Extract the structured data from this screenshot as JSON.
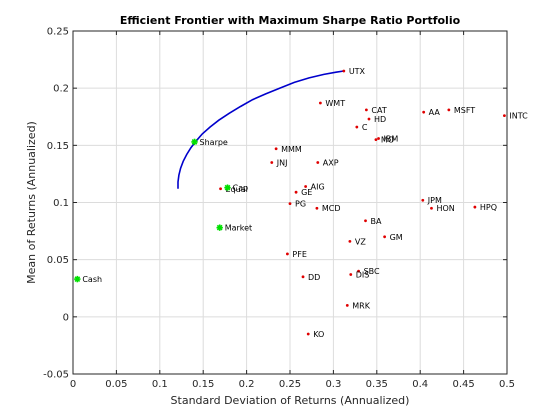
{
  "chart_data": {
    "type": "scatter",
    "title": "Efficient Frontier with Maximum Sharpe Ratio Portfolio",
    "xlabel": "Standard Deviation of Returns (Annualized)",
    "ylabel": "Mean of Returns (Annualized)",
    "xlim": [
      0,
      0.5
    ],
    "ylim": [
      -0.05,
      0.25
    ],
    "xticks": [
      0,
      0.05,
      0.1,
      0.15,
      0.2,
      0.25,
      0.3,
      0.35,
      0.4,
      0.45,
      0.5
    ],
    "xtick_labels": [
      "0",
      "0.05",
      "0.1",
      "0.15",
      "0.2",
      "0.25",
      "0.3",
      "0.35",
      "0.4",
      "0.45",
      "0.5"
    ],
    "yticks": [
      -0.05,
      0,
      0.05,
      0.1,
      0.15,
      0.2,
      0.25
    ],
    "ytick_labels": [
      "-0.05",
      "0",
      "0.05",
      "0.1",
      "0.15",
      "0.2",
      "0.25"
    ],
    "grid": true,
    "frontier": {
      "color": "#0000cc",
      "x": [
        0.121,
        0.121,
        0.122,
        0.124,
        0.127,
        0.131,
        0.136,
        0.142,
        0.149,
        0.158,
        0.168,
        0.18,
        0.193,
        0.207,
        0.222,
        0.238,
        0.255,
        0.272,
        0.289,
        0.303,
        0.312
      ],
      "y": [
        0.112,
        0.118,
        0.124,
        0.13,
        0.136,
        0.142,
        0.148,
        0.154,
        0.16,
        0.166,
        0.172,
        0.178,
        0.184,
        0.19,
        0.195,
        0.2,
        0.205,
        0.209,
        0.212,
        0.214,
        0.215
      ]
    },
    "assets": {
      "color": "#e00000",
      "points": [
        {
          "label": "UTX",
          "x": 0.312,
          "y": 0.215
        },
        {
          "label": "WMT",
          "x": 0.285,
          "y": 0.187
        },
        {
          "label": "CAT",
          "x": 0.338,
          "y": 0.181
        },
        {
          "label": "AA",
          "x": 0.404,
          "y": 0.179
        },
        {
          "label": "MSFT",
          "x": 0.433,
          "y": 0.181
        },
        {
          "label": "INTC",
          "x": 0.497,
          "y": 0.176
        },
        {
          "label": "HD",
          "x": 0.341,
          "y": 0.173
        },
        {
          "label": "C",
          "x": 0.327,
          "y": 0.166
        },
        {
          "label": "IBM",
          "x": 0.352,
          "y": 0.156
        },
        {
          "label": "MO",
          "x": 0.349,
          "y": 0.155
        },
        {
          "label": "MMM",
          "x": 0.234,
          "y": 0.147
        },
        {
          "label": "JNJ",
          "x": 0.229,
          "y": 0.135
        },
        {
          "label": "AXP",
          "x": 0.282,
          "y": 0.135
        },
        {
          "label": "AIG",
          "x": 0.268,
          "y": 0.114
        },
        {
          "label": "GE",
          "x": 0.257,
          "y": 0.109
        },
        {
          "label": "PG",
          "x": 0.25,
          "y": 0.099
        },
        {
          "label": "MCD",
          "x": 0.281,
          "y": 0.095
        },
        {
          "label": "JPM",
          "x": 0.403,
          "y": 0.102
        },
        {
          "label": "HON",
          "x": 0.413,
          "y": 0.095
        },
        {
          "label": "HPQ",
          "x": 0.463,
          "y": 0.096
        },
        {
          "label": "BA",
          "x": 0.337,
          "y": 0.084
        },
        {
          "label": "VZ",
          "x": 0.319,
          "y": 0.066
        },
        {
          "label": "GM",
          "x": 0.359,
          "y": 0.07
        },
        {
          "label": "PFE",
          "x": 0.247,
          "y": 0.055
        },
        {
          "label": "SBC",
          "x": 0.329,
          "y": 0.04
        },
        {
          "label": "DIS",
          "x": 0.32,
          "y": 0.037
        },
        {
          "label": "DD",
          "x": 0.265,
          "y": 0.035
        },
        {
          "label": "MRK",
          "x": 0.316,
          "y": 0.01
        },
        {
          "label": "KO",
          "x": 0.271,
          "y": -0.015
        },
        {
          "label": "Equal",
          "x": 0.17,
          "y": 0.112
        }
      ]
    },
    "portfolios": {
      "color": "#00e000",
      "points": [
        {
          "label": "Sharpe",
          "x": 0.14,
          "y": 0.153
        },
        {
          "label": "Cap",
          "x": 0.178,
          "y": 0.113
        },
        {
          "label": "Market",
          "x": 0.169,
          "y": 0.078
        },
        {
          "label": "Cash",
          "x": 0.005,
          "y": 0.033
        }
      ]
    }
  }
}
